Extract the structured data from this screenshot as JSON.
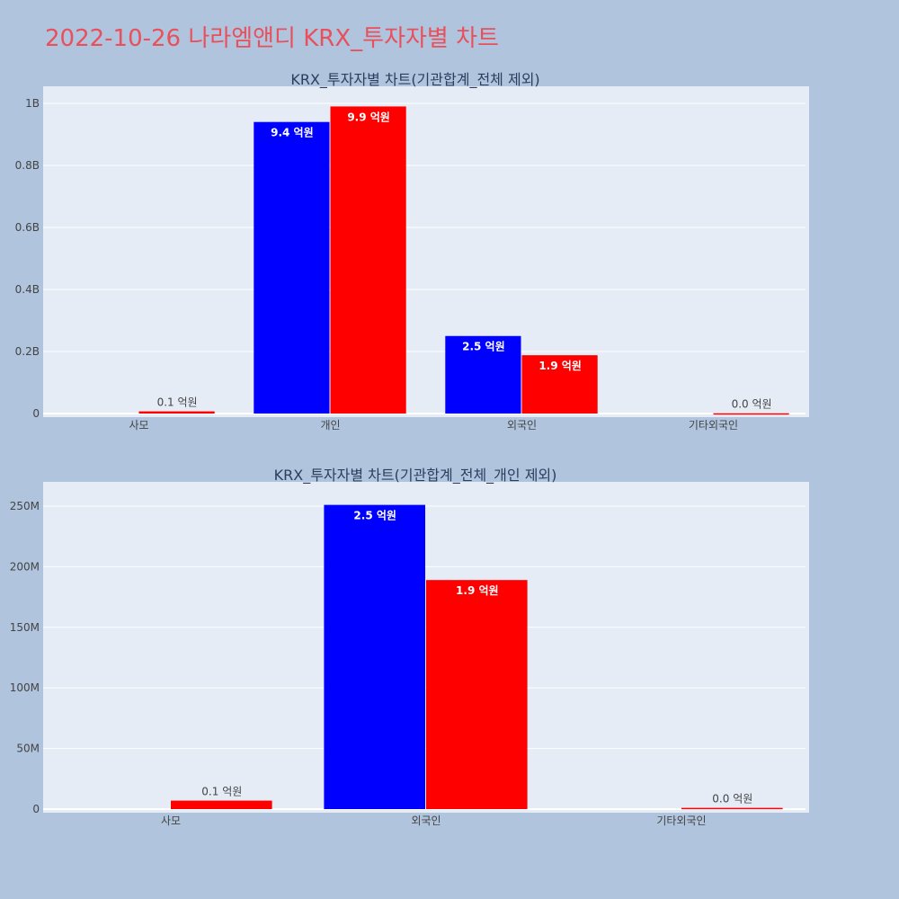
{
  "page": {
    "title": "2022-10-26 나라엠앤디 KRX_투자자별 차트"
  },
  "colors": {
    "background": "#b0c4de",
    "plot_bg": "#e5ecf6",
    "title": "#e8505b",
    "series_1": "#0000ff",
    "series_2": "#ff0000"
  },
  "chart_data": [
    {
      "type": "bar",
      "title": "KRX_투자자별 차트(기관합계_전체 제외)",
      "categories": [
        "사모",
        "개인",
        "외국인",
        "기타외국인"
      ],
      "series": [
        {
          "color": "#0000ff",
          "values": [
            0,
            940000000,
            250000000,
            0
          ],
          "labels": [
            "",
            "9.4 억원",
            "2.5 억원",
            ""
          ]
        },
        {
          "color": "#ff0000",
          "values": [
            7000000,
            990000000,
            188000000,
            1000000
          ],
          "labels": [
            "0.1 억원",
            "9.9 억원",
            "1.9 억원",
            "0.0 억원"
          ]
        }
      ],
      "yticks": [
        0,
        200000000,
        400000000,
        600000000,
        800000000,
        1000000000
      ],
      "ytick_labels": [
        "0",
        "0.2B",
        "0.4B",
        "0.6B",
        "0.8B",
        "1B"
      ],
      "ylim": [
        0,
        1055000000
      ],
      "grid": true,
      "legend": "none"
    },
    {
      "type": "bar",
      "title": "KRX_투자자별 차트(기관합계_전체_개인 제외)",
      "categories": [
        "사모",
        "외국인",
        "기타외국인"
      ],
      "series": [
        {
          "color": "#0000ff",
          "values": [
            0,
            251000000,
            0
          ],
          "labels": [
            "",
            "2.5 억원",
            ""
          ]
        },
        {
          "color": "#ff0000",
          "values": [
            7000000,
            189000000,
            1000000
          ],
          "labels": [
            "0.1 억원",
            "1.9 억원",
            "0.0 억원"
          ]
        }
      ],
      "yticks": [
        0,
        50000000,
        100000000,
        150000000,
        200000000,
        250000000
      ],
      "ytick_labels": [
        "0",
        "50M",
        "100M",
        "150M",
        "200M",
        "250M"
      ],
      "ylim": [
        0,
        270000000
      ],
      "grid": true,
      "legend": "none"
    }
  ]
}
